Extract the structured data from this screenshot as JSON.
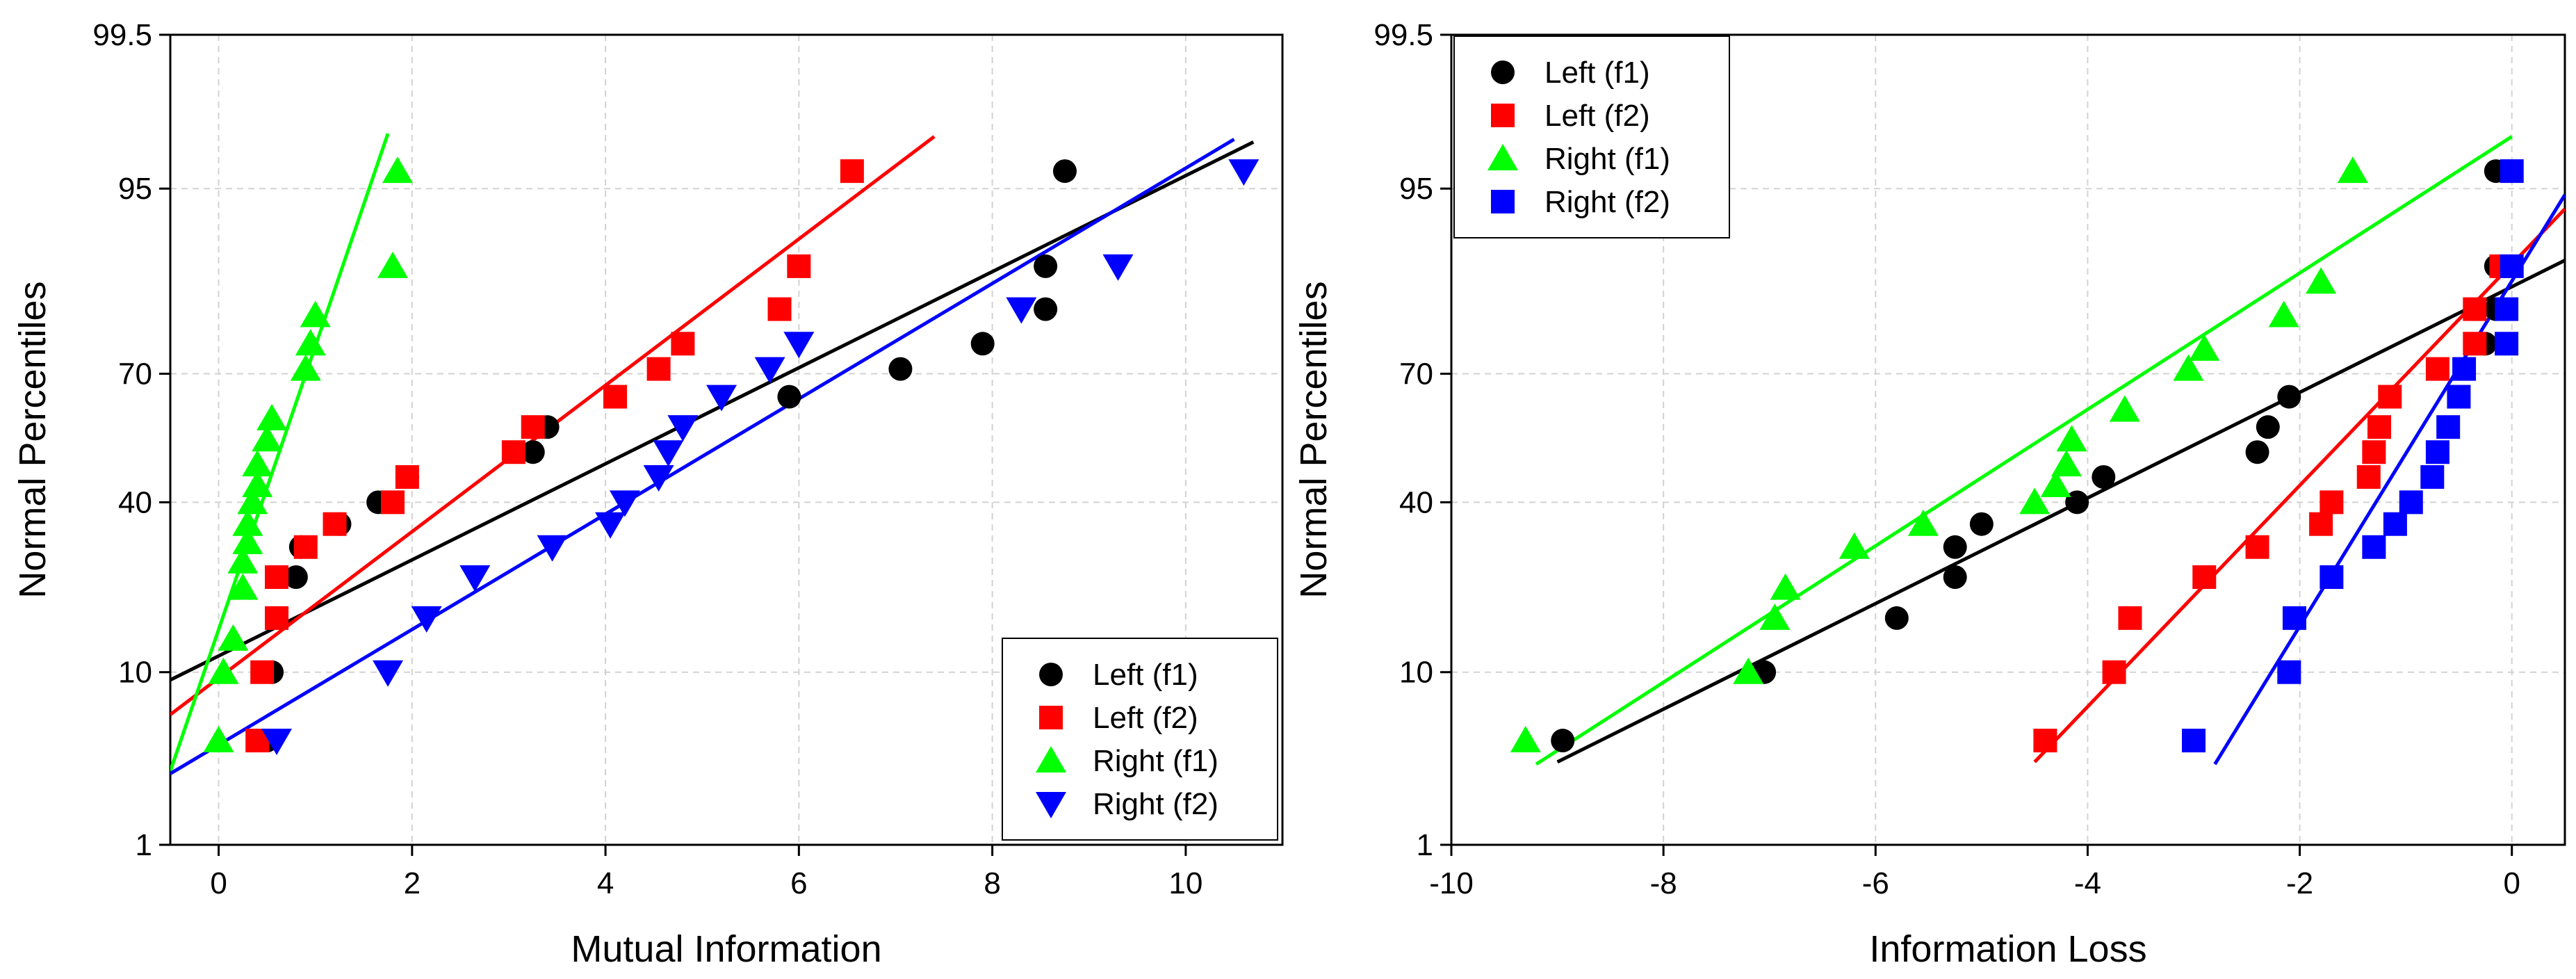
{
  "chart_data": [
    {
      "type": "scatter",
      "panel": "left",
      "xlabel": "Mutual Information",
      "ylabel": "Normal Percentiles",
      "xlim": [
        -0.5,
        11
      ],
      "xticks": [
        0,
        2,
        4,
        6,
        8,
        10
      ],
      "ylim": [
        1,
        99.5
      ],
      "yticks": [
        1,
        10,
        40,
        70,
        95,
        99.5
      ],
      "ytick_labels": [
        "1",
        "10",
        "40",
        "70",
        "95",
        "99.5"
      ],
      "grid": true,
      "legend_position": "bottom-right",
      "series": [
        {
          "name": "Left (f1)",
          "marker": "circle",
          "color": "#000000",
          "points": [
            [
              0.5,
              4.5
            ],
            [
              0.55,
              10
            ],
            [
              0.6,
              17
            ],
            [
              0.8,
              24
            ],
            [
              0.85,
              30
            ],
            [
              1.25,
              35
            ],
            [
              1.65,
              40
            ],
            [
              1.95,
              46
            ],
            [
              3.25,
              52
            ],
            [
              3.4,
              58
            ],
            [
              5.9,
              65
            ],
            [
              7.05,
              71
            ],
            [
              7.9,
              76
            ],
            [
              8.55,
              82
            ],
            [
              8.55,
              88
            ],
            [
              8.75,
              96
            ]
          ],
          "fit": [
            [
              -0.5,
              9.2
            ],
            [
              10.7,
              97.3
            ]
          ]
        },
        {
          "name": "Left (f2)",
          "marker": "square",
          "color": "#ff0000",
          "points": [
            [
              0.4,
              4.5
            ],
            [
              0.45,
              10
            ],
            [
              0.6,
              17
            ],
            [
              0.6,
              24
            ],
            [
              0.9,
              30
            ],
            [
              1.2,
              35
            ],
            [
              1.8,
              40
            ],
            [
              1.95,
              46
            ],
            [
              3.05,
              52
            ],
            [
              3.25,
              58
            ],
            [
              4.1,
              65
            ],
            [
              4.55,
              71
            ],
            [
              4.8,
              76
            ],
            [
              5.8,
              82
            ],
            [
              6.0,
              88
            ],
            [
              6.55,
              96
            ]
          ],
          "fit": [
            [
              -0.5,
              6.2
            ],
            [
              7.4,
              97.5
            ]
          ]
        },
        {
          "name": "Right (f1)",
          "marker": "triangle-up",
          "color": "#00ff00",
          "points": [
            [
              0.0,
              4.5
            ],
            [
              0.05,
              10
            ],
            [
              0.15,
              14
            ],
            [
              0.25,
              22
            ],
            [
              0.25,
              27
            ],
            [
              0.3,
              31
            ],
            [
              0.3,
              35
            ],
            [
              0.35,
              40
            ],
            [
              0.4,
              44
            ],
            [
              0.4,
              49
            ],
            [
              0.5,
              55
            ],
            [
              0.55,
              60
            ],
            [
              0.9,
              71
            ],
            [
              0.95,
              76
            ],
            [
              1.0,
              81
            ],
            [
              1.8,
              88
            ],
            [
              1.85,
              96
            ]
          ],
          "fit": [
            [
              -0.5,
              3.0
            ],
            [
              1.75,
              97.6
            ]
          ]
        },
        {
          "name": "Right (f2)",
          "marker": "triangle-down",
          "color": "#0000ff",
          "points": [
            [
              0.6,
              4.5
            ],
            [
              1.75,
              10
            ],
            [
              2.15,
              17
            ],
            [
              2.65,
              24
            ],
            [
              3.45,
              30
            ],
            [
              4.05,
              35
            ],
            [
              4.2,
              40
            ],
            [
              4.55,
              46
            ],
            [
              4.65,
              52
            ],
            [
              4.8,
              58
            ],
            [
              5.2,
              65
            ],
            [
              5.7,
              71
            ],
            [
              6.0,
              76
            ],
            [
              8.3,
              82
            ],
            [
              9.3,
              88
            ],
            [
              10.6,
              96
            ]
          ],
          "fit": [
            [
              -0.5,
              2.9
            ],
            [
              10.5,
              97.4
            ]
          ]
        }
      ]
    },
    {
      "type": "scatter",
      "panel": "right",
      "xlabel": "Information Loss",
      "ylabel": "Normal Percentiles",
      "xlim": [
        -10,
        0.5
      ],
      "xticks": [
        -10,
        -8,
        -6,
        -4,
        -2,
        0
      ],
      "ylim": [
        1,
        99.5
      ],
      "yticks": [
        1,
        10,
        40,
        70,
        95,
        99.5
      ],
      "ytick_labels": [
        "1",
        "10",
        "40",
        "70",
        "95",
        "99.5"
      ],
      "grid": true,
      "legend_position": "top-left",
      "series": [
        {
          "name": "Left (f1)",
          "marker": "circle",
          "color": "#000000",
          "points": [
            [
              -8.95,
              4.5
            ],
            [
              -7.05,
              10
            ],
            [
              -5.8,
              17
            ],
            [
              -5.25,
              24
            ],
            [
              -5.25,
              30
            ],
            [
              -5.0,
              35
            ],
            [
              -4.1,
              40
            ],
            [
              -3.85,
              46
            ],
            [
              -2.4,
              52
            ],
            [
              -2.3,
              58
            ],
            [
              -2.1,
              65
            ],
            [
              -0.25,
              76
            ],
            [
              -0.15,
              82
            ],
            [
              -0.15,
              88
            ],
            [
              -0.15,
              96
            ]
          ],
          "fit": [
            [
              -9.0,
              3.4
            ],
            [
              0.5,
              88.7
            ]
          ]
        },
        {
          "name": "Left (f2)",
          "marker": "square",
          "color": "#ff0000",
          "points": [
            [
              -4.4,
              4.5
            ],
            [
              -3.75,
              10
            ],
            [
              -3.6,
              17
            ],
            [
              -2.9,
              24
            ],
            [
              -2.4,
              30
            ],
            [
              -1.8,
              35
            ],
            [
              -1.7,
              40
            ],
            [
              -1.35,
              46
            ],
            [
              -1.3,
              52
            ],
            [
              -1.25,
              58
            ],
            [
              -1.15,
              65
            ],
            [
              -0.7,
              71
            ],
            [
              -0.35,
              76
            ],
            [
              -0.35,
              82
            ],
            [
              -0.1,
              88
            ]
          ],
          "fit": [
            [
              -4.5,
              3.4
            ],
            [
              0.5,
              93.6
            ]
          ]
        },
        {
          "name": "Right (f1)",
          "marker": "triangle-up",
          "color": "#00ff00",
          "points": [
            [
              -9.3,
              4.5
            ],
            [
              -7.2,
              10
            ],
            [
              -6.95,
              17
            ],
            [
              -6.85,
              22
            ],
            [
              -6.2,
              30
            ],
            [
              -5.55,
              35
            ],
            [
              -4.5,
              40
            ],
            [
              -4.3,
              44
            ],
            [
              -4.2,
              49
            ],
            [
              -4.15,
              55
            ],
            [
              -3.65,
              62
            ],
            [
              -3.05,
              71
            ],
            [
              -2.9,
              75
            ],
            [
              -2.15,
              81
            ],
            [
              -1.8,
              86
            ],
            [
              -1.5,
              96
            ]
          ],
          "fit": [
            [
              -9.2,
              3.3
            ],
            [
              0.0,
              97.5
            ]
          ]
        },
        {
          "name": "Right (f2)",
          "marker": "square",
          "color": "#0000ff",
          "points": [
            [
              -3.0,
              4.5
            ],
            [
              -2.1,
              10
            ],
            [
              -2.05,
              17
            ],
            [
              -1.7,
              24
            ],
            [
              -1.3,
              30
            ],
            [
              -1.1,
              35
            ],
            [
              -0.95,
              40
            ],
            [
              -0.75,
              46
            ],
            [
              -0.7,
              52
            ],
            [
              -0.6,
              58
            ],
            [
              -0.5,
              65
            ],
            [
              -0.45,
              71
            ],
            [
              -0.05,
              76
            ],
            [
              -0.05,
              82
            ],
            [
              0.0,
              88
            ],
            [
              0.0,
              96
            ]
          ],
          "fit": [
            [
              -2.8,
              3.3
            ],
            [
              0.5,
              94.6
            ]
          ]
        }
      ]
    }
  ]
}
